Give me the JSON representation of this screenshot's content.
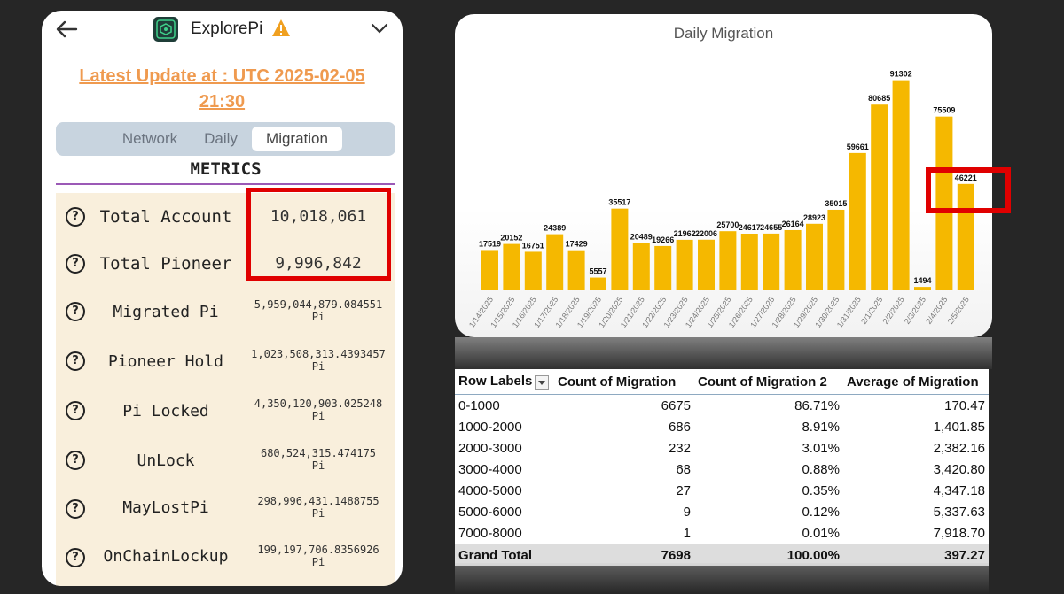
{
  "app": {
    "title": "ExplorePi",
    "update_text": "Latest Update at : UTC 2025-02-05 21:30",
    "tabs": [
      {
        "label": "Network",
        "active": false
      },
      {
        "label": "Daily",
        "active": false
      },
      {
        "label": "Migration",
        "active": true
      }
    ],
    "metrics_title": "METRICS",
    "metrics": [
      {
        "label": "Total Account",
        "value": "10,018,061",
        "unit": ""
      },
      {
        "label": "Total Pioneer",
        "value": "9,996,842",
        "unit": ""
      },
      {
        "label": "Migrated Pi",
        "value": "5,959,044,879.084551",
        "unit": "Pi"
      },
      {
        "label": "Pioneer Hold",
        "value": "1,023,508,313.4393457",
        "unit": "Pi"
      },
      {
        "label": "Pi Locked",
        "value": "4,350,120,903.025248",
        "unit": "Pi"
      },
      {
        "label": "UnLock",
        "value": "680,524,315.474175",
        "unit": "Pi"
      },
      {
        "label": "MayLostPi",
        "value": "298,996,431.1488755",
        "unit": "Pi"
      },
      {
        "label": "OnChainLockup",
        "value": "199,197,706.8356926",
        "unit": "Pi"
      }
    ],
    "colors": {
      "accent": "#ef9a4f",
      "highlight_box": "#e00000",
      "row_bg": "#f9efdc",
      "warning": "#f0a020"
    }
  },
  "chart_data": {
    "type": "bar",
    "title": "Daily Migration",
    "categories": [
      "1/14/2025",
      "1/15/2025",
      "1/16/2025",
      "1/17/2025",
      "1/18/2025",
      "1/19/2025",
      "1/20/2025",
      "1/21/2025",
      "1/22/2025",
      "1/23/2025",
      "1/24/2025",
      "1/25/2025",
      "1/26/2025",
      "1/27/2025",
      "1/28/2025",
      "1/29/2025",
      "1/30/2025",
      "1/31/2025",
      "2/1/2025",
      "2/2/2025",
      "2/3/2025",
      "2/4/2025",
      "2/5/2025"
    ],
    "values": [
      17519,
      20152,
      16751,
      24389,
      17429,
      5557,
      35517,
      20489,
      19266,
      21962,
      22006,
      25700,
      24617,
      24655,
      26164,
      28923,
      35015,
      59661,
      80685,
      91302,
      1494,
      75509,
      46221
    ],
    "bar_color": "#f5b800",
    "ylim": [
      0,
      95000
    ],
    "grid": false,
    "data_labels": true
  },
  "pivot": {
    "headers": [
      "Row Labels",
      "Count of Migration",
      "Count of Migration 2",
      "Average of Migration"
    ],
    "rows": [
      [
        "0-1000",
        "6675",
        "86.71%",
        "170.47"
      ],
      [
        "1000-2000",
        "686",
        "8.91%",
        "1,401.85"
      ],
      [
        "2000-3000",
        "232",
        "3.01%",
        "2,382.16"
      ],
      [
        "3000-4000",
        "68",
        "0.88%",
        "3,420.80"
      ],
      [
        "4000-5000",
        "27",
        "0.35%",
        "4,347.18"
      ],
      [
        "5000-6000",
        "9",
        "0.12%",
        "5,337.63"
      ],
      [
        "7000-8000",
        "1",
        "0.01%",
        "7,918.70"
      ]
    ],
    "total": [
      "Grand Total",
      "7698",
      "100.00%",
      "397.27"
    ],
    "highlight_color": "#ffff00"
  }
}
